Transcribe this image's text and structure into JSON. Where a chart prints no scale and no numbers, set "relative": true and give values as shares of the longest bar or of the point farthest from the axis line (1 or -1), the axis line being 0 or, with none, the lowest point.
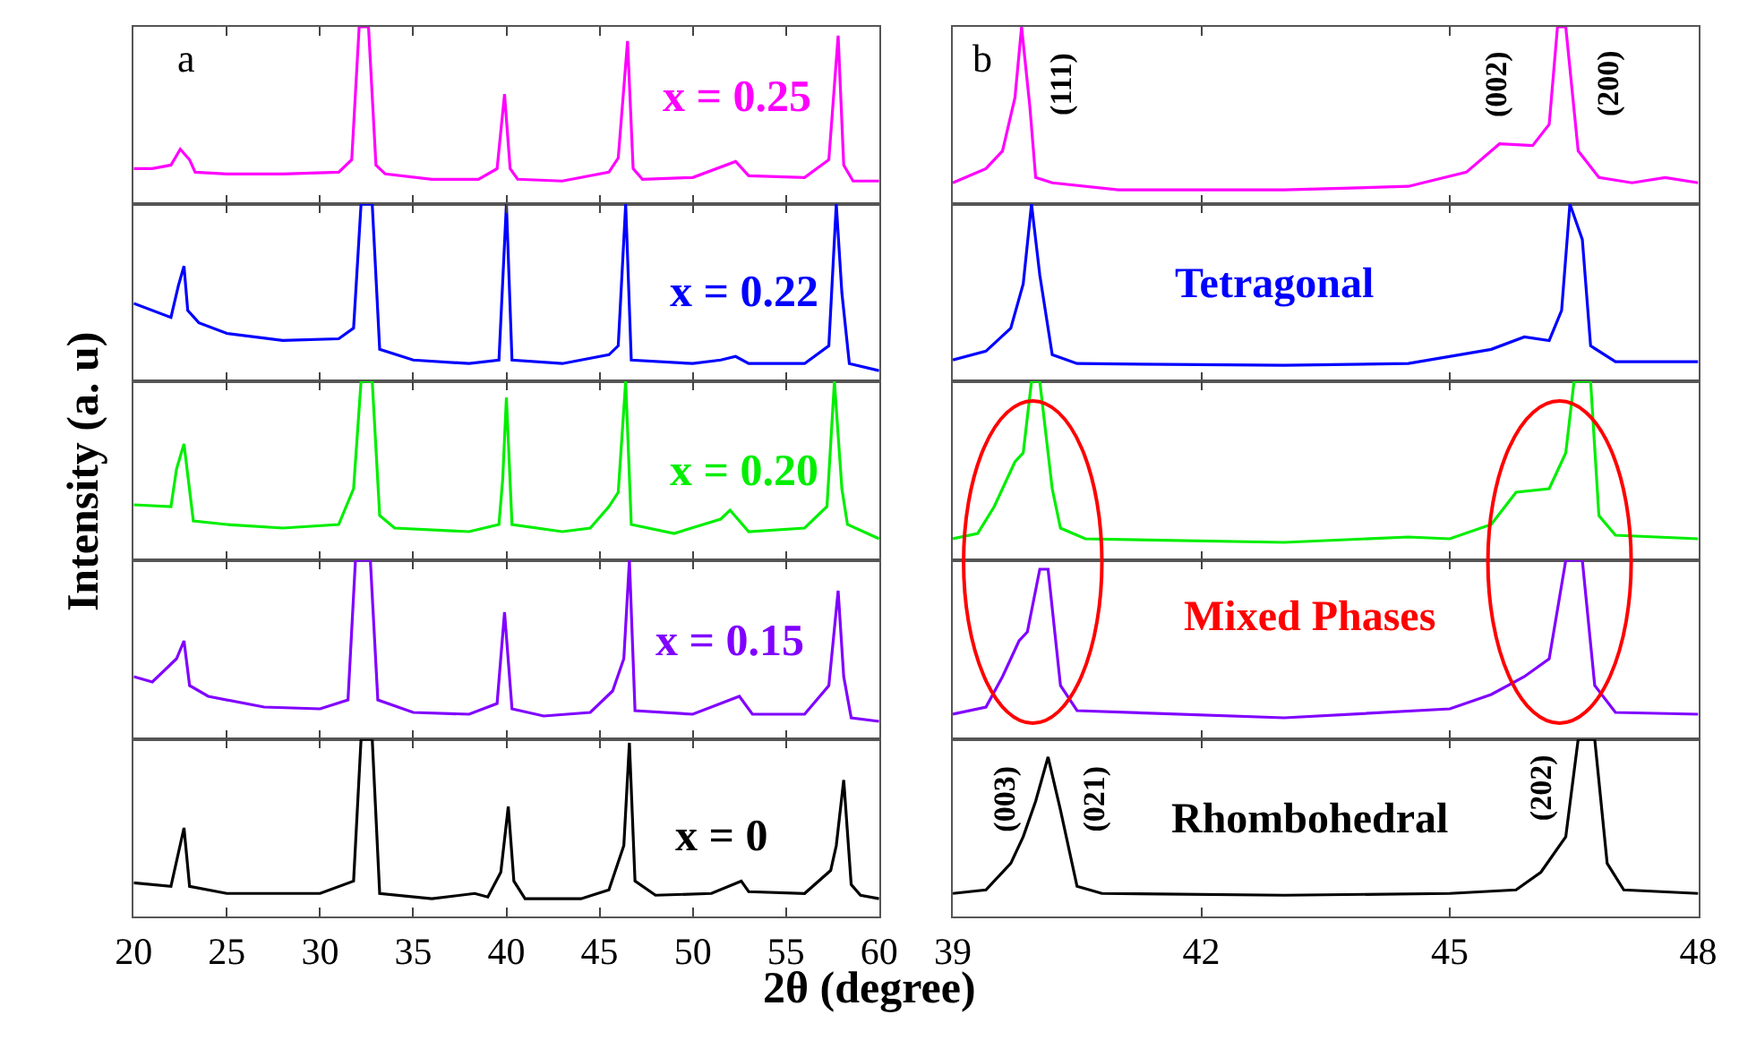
{
  "chart_data": [
    {
      "type": "line",
      "relative": true,
      "xlim": [
        20,
        60
      ],
      "xticks": [
        20,
        25,
        30,
        35,
        40,
        45,
        50,
        55,
        60
      ],
      "tick_labels": false,
      "ylabel": "Intensity (a. u)",
      "annotations": [
        "a"
      ],
      "series": [
        {
          "name": "x = 0.25",
          "color": "#ff00ff",
          "x": [
            20,
            21,
            22,
            22.5,
            23,
            23.3,
            25,
            28,
            31,
            31.7,
            32.1,
            32.6,
            33,
            33.5,
            36,
            38.5,
            39.5,
            39.9,
            40.2,
            40.6,
            43,
            45.5,
            46,
            46.5,
            46.8,
            47.3,
            50,
            52.3,
            53,
            56,
            57.3,
            57.8,
            58.1,
            58.6,
            60
          ],
          "values": [
            0.2,
            0.2,
            0.22,
            0.31,
            0.25,
            0.18,
            0.17,
            0.17,
            0.18,
            0.25,
            1,
            1,
            0.22,
            0.17,
            0.14,
            0.14,
            0.2,
            0.62,
            0.2,
            0.14,
            0.13,
            0.18,
            0.26,
            0.92,
            0.2,
            0.14,
            0.15,
            0.24,
            0.16,
            0.15,
            0.25,
            0.95,
            0.22,
            0.13,
            0.13
          ]
        }
      ]
    },
    {
      "type": "line",
      "relative": true,
      "xlim": [
        20,
        60
      ],
      "xticks": [
        20,
        25,
        30,
        35,
        40,
        45,
        50,
        55,
        60
      ],
      "tick_labels": false,
      "series": [
        {
          "name": "x = 0.22",
          "color": "#0000ff",
          "x": [
            20,
            22,
            22.4,
            22.7,
            22.9,
            23.5,
            25,
            28,
            31,
            31.8,
            32.2,
            32.8,
            33.2,
            35,
            38,
            39.6,
            40,
            40.3,
            43,
            45.5,
            46,
            46.4,
            46.7,
            50,
            51.5,
            52.3,
            53,
            56,
            57.3,
            57.7,
            58,
            58.4,
            60
          ],
          "values": [
            0.44,
            0.36,
            0.54,
            0.65,
            0.4,
            0.33,
            0.27,
            0.23,
            0.24,
            0.3,
            1,
            1,
            0.18,
            0.12,
            0.1,
            0.12,
            1,
            0.12,
            0.1,
            0.15,
            0.2,
            1,
            0.12,
            0.1,
            0.12,
            0.14,
            0.1,
            0.1,
            0.2,
            1,
            0.5,
            0.1,
            0.06
          ]
        }
      ]
    },
    {
      "type": "line",
      "relative": true,
      "xlim": [
        20,
        60
      ],
      "xticks": [
        20,
        25,
        30,
        35,
        40,
        45,
        50,
        55,
        60
      ],
      "tick_labels": false,
      "series": [
        {
          "name": "x = 0.20",
          "color": "#00ee00",
          "x": [
            20,
            22,
            22.3,
            22.7,
            23.2,
            25,
            28,
            31,
            31.8,
            32.2,
            32.8,
            33.2,
            34,
            38,
            39.6,
            39.8,
            40,
            40.3,
            43,
            44.5,
            45.5,
            46,
            46.4,
            46.7,
            49,
            51.5,
            52,
            52.5,
            53,
            56,
            57.2,
            57.6,
            58,
            58.3,
            60
          ],
          "values": [
            0.31,
            0.3,
            0.51,
            0.65,
            0.22,
            0.2,
            0.18,
            0.2,
            0.4,
            1,
            1,
            0.25,
            0.18,
            0.16,
            0.2,
            0.45,
            0.91,
            0.2,
            0.16,
            0.18,
            0.3,
            0.38,
            1,
            0.2,
            0.15,
            0.23,
            0.28,
            0.22,
            0.16,
            0.18,
            0.3,
            1,
            0.4,
            0.2,
            0.12
          ]
        }
      ]
    },
    {
      "type": "line",
      "relative": true,
      "xlim": [
        20,
        60
      ],
      "xticks": [
        20,
        25,
        30,
        35,
        40,
        45,
        50,
        55,
        60
      ],
      "tick_labels": false,
      "series": [
        {
          "name": "x = 0.15",
          "color": "#8000ff",
          "x": [
            20,
            21,
            22.3,
            22.7,
            23,
            24,
            27,
            30,
            31.5,
            31.9,
            32.7,
            33.1,
            35,
            38,
            39.5,
            39.9,
            40.3,
            42,
            44.5,
            45.7,
            46.3,
            46.6,
            46.9,
            50,
            52.5,
            53.2,
            56,
            57.3,
            57.8,
            58.1,
            58.5,
            60
          ],
          "values": [
            0.35,
            0.32,
            0.45,
            0.55,
            0.3,
            0.24,
            0.18,
            0.17,
            0.22,
            1,
            1,
            0.22,
            0.15,
            0.14,
            0.2,
            0.71,
            0.17,
            0.13,
            0.15,
            0.27,
            0.45,
            1,
            0.16,
            0.14,
            0.24,
            0.14,
            0.14,
            0.3,
            0.83,
            0.35,
            0.12,
            0.1
          ]
        }
      ]
    },
    {
      "type": "line",
      "relative": true,
      "xlim": [
        20,
        60
      ],
      "xticks": [
        20,
        25,
        30,
        35,
        40,
        45,
        50,
        55,
        60
      ],
      "tick_labels": "x",
      "xlabel": "2θ (degree)",
      "series": [
        {
          "name": "x = 0",
          "color": "#000000",
          "x": [
            20,
            22,
            22.7,
            23,
            25,
            30,
            31.8,
            32.2,
            32.8,
            33.2,
            36,
            38.3,
            39,
            39.7,
            40.1,
            40.4,
            41,
            44,
            45.5,
            46.3,
            46.6,
            46.9,
            48,
            51,
            52.6,
            53,
            56,
            57.4,
            57.7,
            58.1,
            58.5,
            59,
            60
          ],
          "values": [
            0.19,
            0.17,
            0.5,
            0.17,
            0.13,
            0.13,
            0.2,
            1,
            1,
            0.13,
            0.1,
            0.13,
            0.11,
            0.25,
            0.62,
            0.2,
            0.1,
            0.1,
            0.15,
            0.4,
            0.98,
            0.2,
            0.12,
            0.13,
            0.2,
            0.14,
            0.13,
            0.26,
            0.4,
            0.77,
            0.18,
            0.12,
            0.1
          ]
        }
      ]
    },
    {
      "type": "line",
      "relative": true,
      "xlim": [
        39,
        48
      ],
      "xticks": [
        39,
        42,
        45,
        48
      ],
      "tick_labels": false,
      "annotations": [
        "b",
        "(111)",
        "(002)",
        "(200)"
      ],
      "series": [
        {
          "color": "#ff00ff",
          "x": [
            39,
            39.4,
            39.6,
            39.75,
            39.83,
            39.93,
            40,
            40.2,
            41,
            43,
            44.5,
            45.2,
            45.6,
            46,
            46.2,
            46.3,
            46.4,
            46.55,
            46.8,
            47.2,
            47.6,
            48
          ],
          "values": [
            0.12,
            0.2,
            0.3,
            0.6,
            1,
            0.55,
            0.15,
            0.12,
            0.08,
            0.08,
            0.1,
            0.18,
            0.34,
            0.33,
            0.45,
            1,
            1,
            0.3,
            0.15,
            0.12,
            0.15,
            0.12
          ]
        }
      ]
    },
    {
      "type": "line",
      "relative": true,
      "xlim": [
        39,
        48
      ],
      "xticks": [
        39,
        42,
        45,
        48
      ],
      "tick_labels": false,
      "annotations": [
        "Tetragonal"
      ],
      "series": [
        {
          "color": "#0000ff",
          "x": [
            39,
            39.4,
            39.7,
            39.85,
            39.95,
            40.05,
            40.2,
            40.5,
            43,
            44.5,
            45.5,
            45.9,
            46.2,
            46.35,
            46.45,
            46.6,
            46.7,
            47,
            48
          ],
          "values": [
            0.12,
            0.17,
            0.3,
            0.55,
            1,
            0.6,
            0.15,
            0.1,
            0.09,
            0.1,
            0.18,
            0.25,
            0.23,
            0.4,
            1,
            0.8,
            0.2,
            0.11,
            0.11
          ]
        }
      ]
    },
    {
      "type": "line",
      "relative": true,
      "xlim": [
        39,
        48
      ],
      "xticks": [
        39,
        42,
        45,
        48
      ],
      "tick_labels": false,
      "series": [
        {
          "color": "#00ee00",
          "x": [
            39,
            39.3,
            39.5,
            39.75,
            39.85,
            39.95,
            40.05,
            40.2,
            40.3,
            40.6,
            43,
            44.5,
            45,
            45.5,
            45.8,
            46.2,
            46.4,
            46.5,
            46.7,
            46.8,
            47,
            48
          ],
          "values": [
            0.12,
            0.15,
            0.3,
            0.55,
            0.6,
            1,
            1,
            0.4,
            0.18,
            0.12,
            0.1,
            0.13,
            0.12,
            0.2,
            0.38,
            0.4,
            0.6,
            1,
            1,
            0.25,
            0.14,
            0.12
          ]
        }
      ]
    },
    {
      "type": "line",
      "relative": true,
      "xlim": [
        39,
        48
      ],
      "xticks": [
        39,
        42,
        45,
        48
      ],
      "tick_labels": false,
      "annotations": [
        "Mixed Phases"
      ],
      "series": [
        {
          "color": "#8000ff",
          "x": [
            39,
            39.4,
            39.6,
            39.8,
            39.9,
            40.05,
            40.15,
            40.3,
            40.5,
            43,
            45,
            45.5,
            45.9,
            46.2,
            46.4,
            46.6,
            46.75,
            47,
            48
          ],
          "values": [
            0.14,
            0.18,
            0.35,
            0.55,
            0.6,
            0.95,
            0.95,
            0.3,
            0.16,
            0.12,
            0.17,
            0.25,
            0.35,
            0.45,
            1,
            1,
            0.3,
            0.15,
            0.14
          ]
        }
      ]
    },
    {
      "type": "line",
      "relative": true,
      "xlim": [
        39,
        48
      ],
      "xticks": [
        39,
        42,
        45,
        48
      ],
      "tick_labels": "x",
      "annotations": [
        "Rhombohedral",
        "(003)",
        "(021)",
        "(202)"
      ],
      "series": [
        {
          "color": "#000000",
          "x": [
            39,
            39.4,
            39.7,
            39.85,
            40,
            40.15,
            40.3,
            40.5,
            40.8,
            43,
            45,
            45.8,
            46.1,
            46.4,
            46.55,
            46.75,
            46.9,
            47.1,
            48
          ],
          "values": [
            0.13,
            0.15,
            0.3,
            0.45,
            0.65,
            0.9,
            0.6,
            0.17,
            0.13,
            0.12,
            0.13,
            0.15,
            0.25,
            0.45,
            1,
            1,
            0.3,
            0.15,
            0.13
          ]
        }
      ]
    }
  ]
}
